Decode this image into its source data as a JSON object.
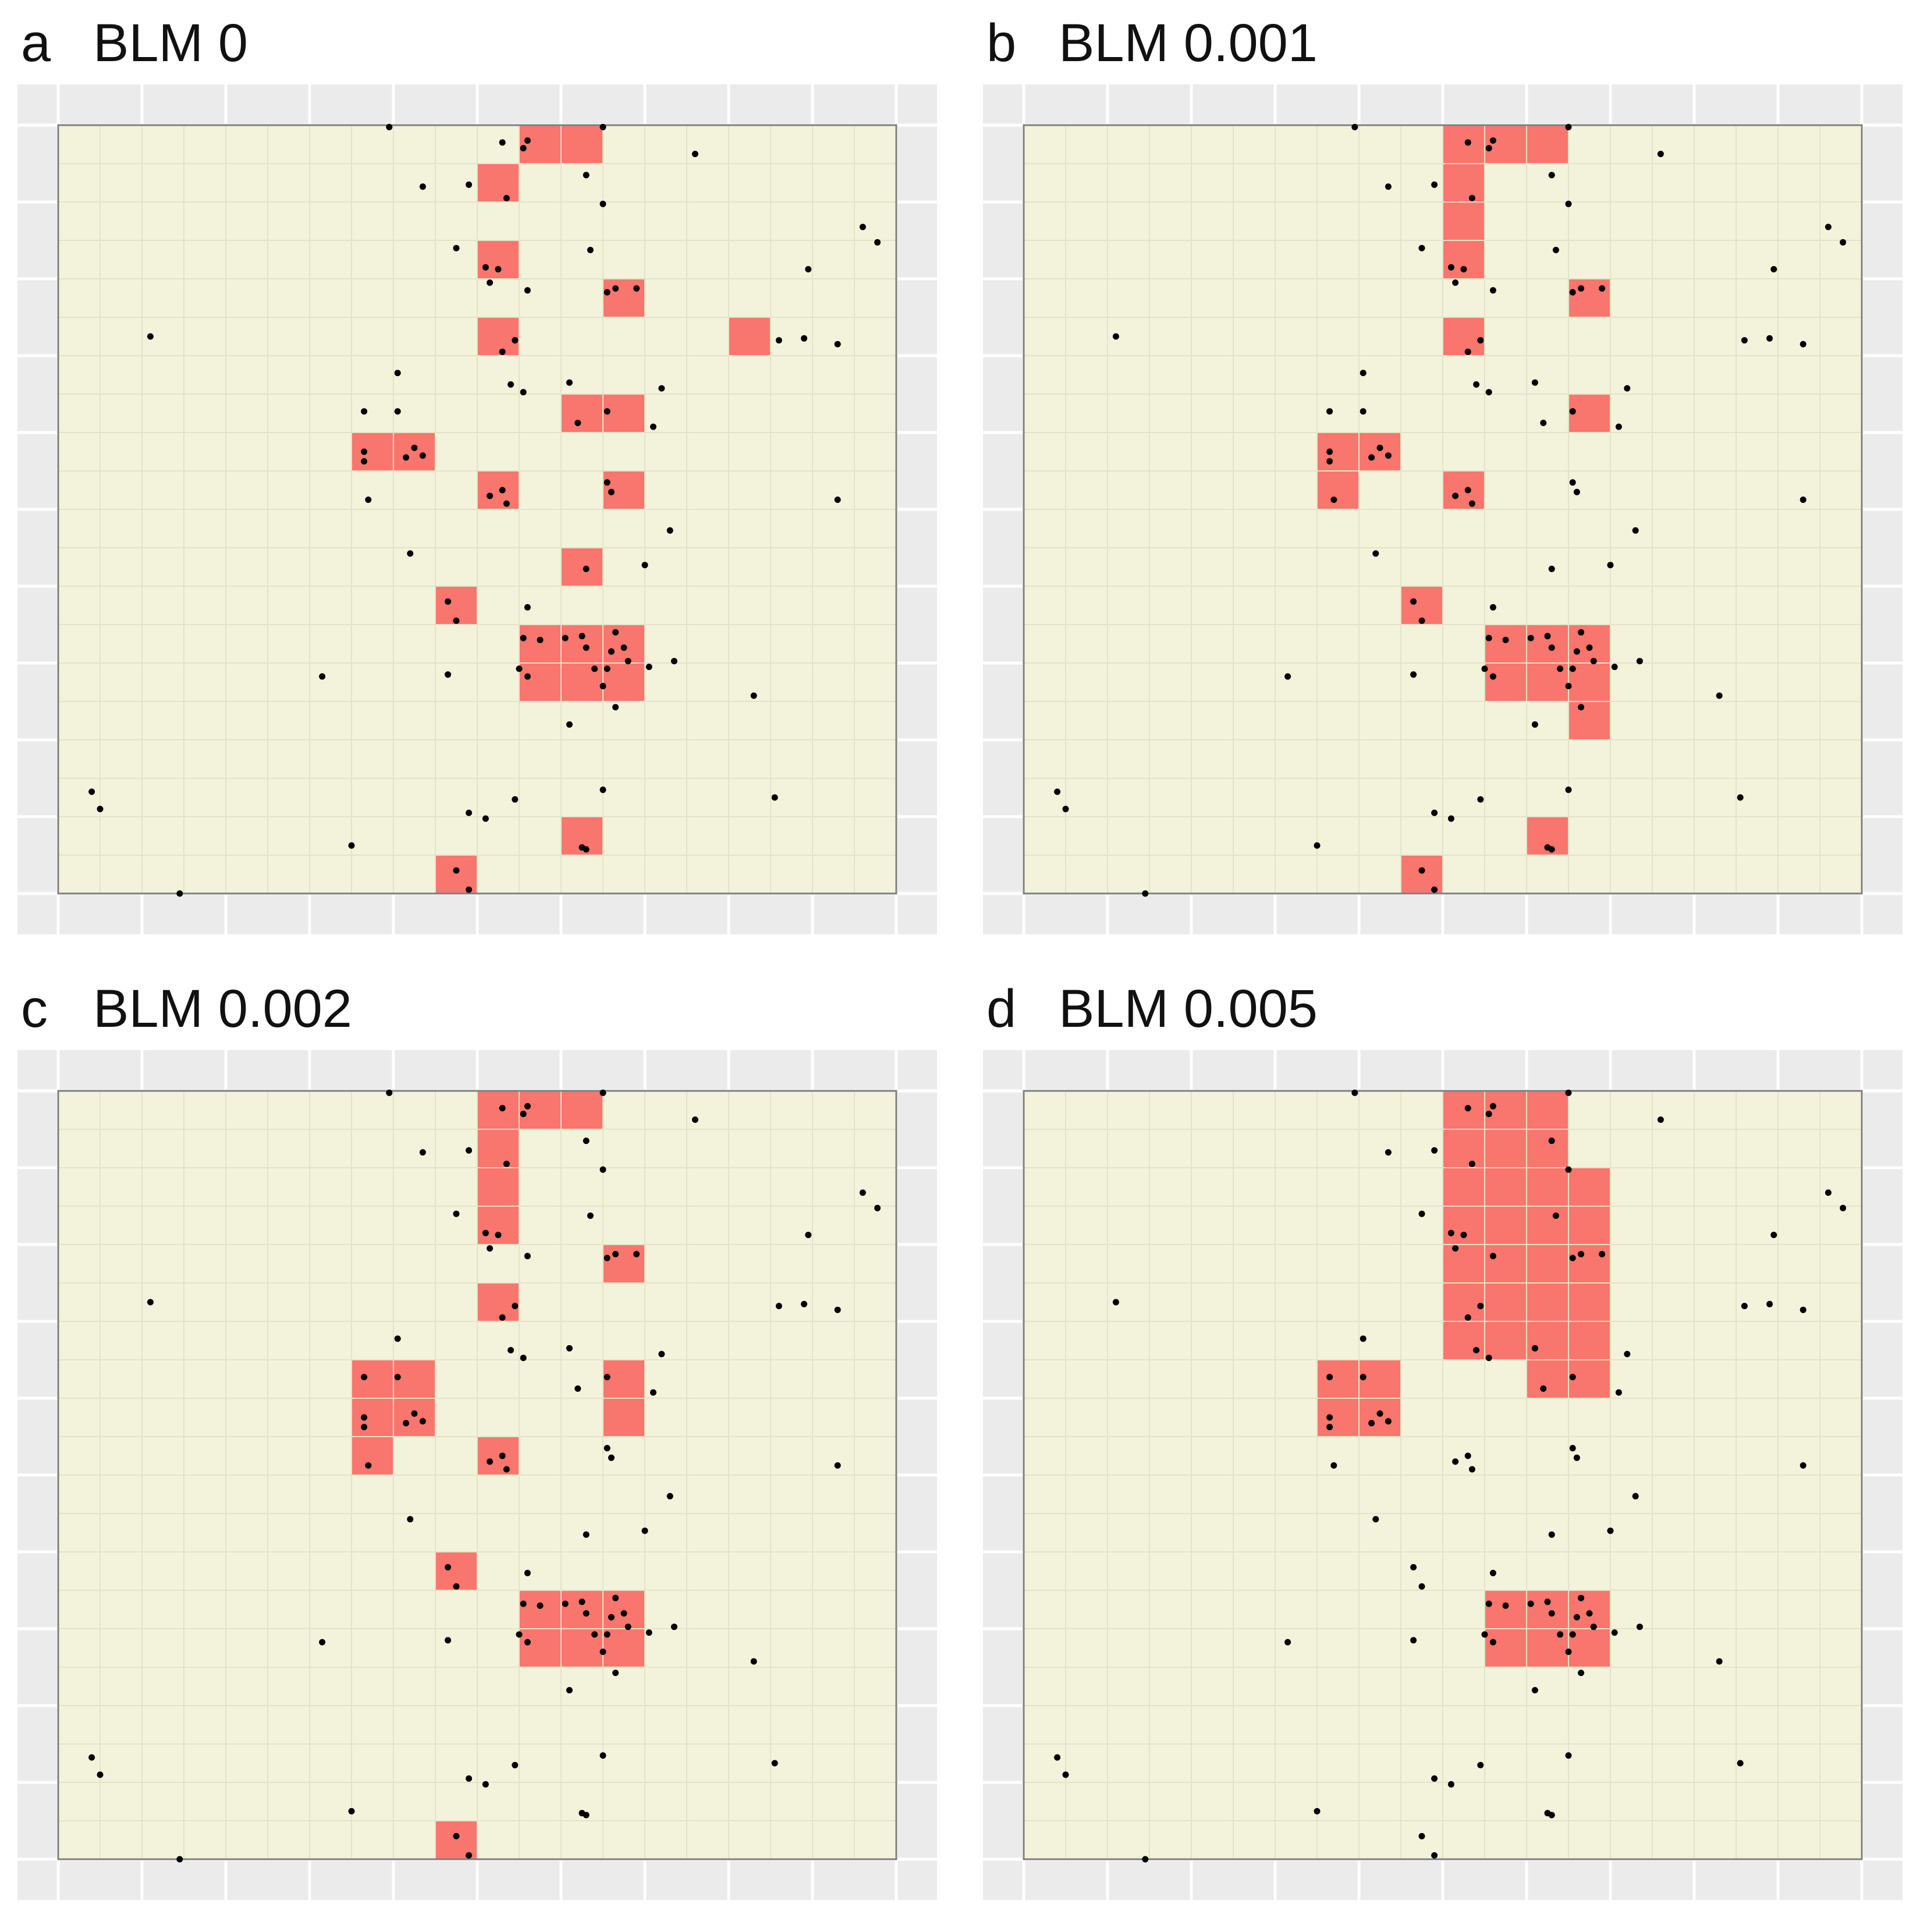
{
  "colors": {
    "panel_bg": "#ebebeb",
    "plot_bg": "#f3f3dc",
    "grid": "#e3e3c7",
    "selected": "#f8766d",
    "point": "#000000",
    "border": "#7f7f7f"
  },
  "chart_data": [
    {
      "type": "heatmap",
      "label": "a",
      "title": "BLM 0",
      "grid": {
        "cols": 20,
        "rows": 20,
        "gridlines": true
      },
      "xlabel": "",
      "ylabel": "",
      "selected_cells": [
        [
          11,
          0
        ],
        [
          12,
          0
        ],
        [
          10,
          1
        ],
        [
          10,
          3
        ],
        [
          13,
          4
        ],
        [
          10,
          5
        ],
        [
          16,
          5
        ],
        [
          12,
          7
        ],
        [
          13,
          7
        ],
        [
          7,
          8
        ],
        [
          8,
          8
        ],
        [
          10,
          9
        ],
        [
          13,
          9
        ],
        [
          12,
          11
        ],
        [
          9,
          12
        ],
        [
          11,
          13
        ],
        [
          12,
          13
        ],
        [
          13,
          13
        ],
        [
          11,
          14
        ],
        [
          12,
          14
        ],
        [
          13,
          14
        ],
        [
          12,
          18
        ],
        [
          9,
          19
        ]
      ]
    },
    {
      "type": "heatmap",
      "label": "b",
      "title": "BLM 0.001",
      "grid": {
        "cols": 20,
        "rows": 20,
        "gridlines": true
      },
      "xlabel": "",
      "ylabel": "",
      "selected_cells": [
        [
          10,
          0
        ],
        [
          11,
          0
        ],
        [
          12,
          0
        ],
        [
          10,
          1
        ],
        [
          10,
          2
        ],
        [
          10,
          3
        ],
        [
          13,
          4
        ],
        [
          10,
          5
        ],
        [
          13,
          7
        ],
        [
          7,
          8
        ],
        [
          8,
          8
        ],
        [
          7,
          9
        ],
        [
          10,
          9
        ],
        [
          9,
          12
        ],
        [
          11,
          13
        ],
        [
          12,
          13
        ],
        [
          13,
          13
        ],
        [
          11,
          14
        ],
        [
          12,
          14
        ],
        [
          13,
          14
        ],
        [
          13,
          15
        ],
        [
          12,
          18
        ],
        [
          9,
          19
        ]
      ]
    },
    {
      "type": "heatmap",
      "label": "c",
      "title": "BLM 0.002",
      "grid": {
        "cols": 20,
        "rows": 20,
        "gridlines": true
      },
      "xlabel": "",
      "ylabel": "",
      "selected_cells": [
        [
          10,
          0
        ],
        [
          11,
          0
        ],
        [
          12,
          0
        ],
        [
          10,
          1
        ],
        [
          10,
          2
        ],
        [
          10,
          3
        ],
        [
          13,
          4
        ],
        [
          10,
          5
        ],
        [
          7,
          7
        ],
        [
          8,
          7
        ],
        [
          13,
          7
        ],
        [
          7,
          8
        ],
        [
          8,
          8
        ],
        [
          13,
          8
        ],
        [
          7,
          9
        ],
        [
          10,
          9
        ],
        [
          9,
          12
        ],
        [
          11,
          13
        ],
        [
          12,
          13
        ],
        [
          13,
          13
        ],
        [
          11,
          14
        ],
        [
          12,
          14
        ],
        [
          13,
          14
        ],
        [
          9,
          19
        ]
      ]
    },
    {
      "type": "heatmap",
      "label": "d",
      "title": "BLM 0.005",
      "grid": {
        "cols": 20,
        "rows": 20,
        "gridlines": true
      },
      "xlabel": "",
      "ylabel": "",
      "selected_cells": [
        [
          10,
          0
        ],
        [
          11,
          0
        ],
        [
          12,
          0
        ],
        [
          10,
          1
        ],
        [
          11,
          1
        ],
        [
          12,
          1
        ],
        [
          10,
          2
        ],
        [
          11,
          2
        ],
        [
          12,
          2
        ],
        [
          13,
          2
        ],
        [
          10,
          3
        ],
        [
          11,
          3
        ],
        [
          12,
          3
        ],
        [
          13,
          3
        ],
        [
          10,
          4
        ],
        [
          11,
          4
        ],
        [
          12,
          4
        ],
        [
          13,
          4
        ],
        [
          10,
          5
        ],
        [
          11,
          5
        ],
        [
          12,
          5
        ],
        [
          13,
          5
        ],
        [
          10,
          6
        ],
        [
          11,
          6
        ],
        [
          12,
          6
        ],
        [
          13,
          6
        ],
        [
          12,
          7
        ],
        [
          13,
          7
        ],
        [
          7,
          7
        ],
        [
          8,
          7
        ],
        [
          7,
          8
        ],
        [
          8,
          8
        ],
        [
          11,
          13
        ],
        [
          12,
          13
        ],
        [
          13,
          13
        ],
        [
          11,
          14
        ],
        [
          12,
          14
        ],
        [
          13,
          14
        ]
      ]
    }
  ],
  "points": [
    [
      7.9,
      0.05
    ],
    [
      10.6,
      0.45
    ],
    [
      11.2,
      0.4
    ],
    [
      11.1,
      0.6
    ],
    [
      15.2,
      0.75
    ],
    [
      13,
      0.05
    ],
    [
      8.7,
      1.6
    ],
    [
      9.8,
      1.55
    ],
    [
      10.7,
      1.9
    ],
    [
      12.6,
      1.3
    ],
    [
      13,
      2.05
    ],
    [
      19.2,
      2.65
    ],
    [
      19.55,
      3.05
    ],
    [
      9.5,
      3.2
    ],
    [
      10.2,
      3.7
    ],
    [
      10.5,
      3.75
    ],
    [
      12.7,
      3.25
    ],
    [
      17.9,
      3.75
    ],
    [
      10.3,
      4.1
    ],
    [
      11.2,
      4.3
    ],
    [
      13.3,
      4.25
    ],
    [
      13.1,
      4.35
    ],
    [
      13.8,
      4.25
    ],
    [
      2.2,
      5.5
    ],
    [
      10.9,
      5.6
    ],
    [
      10.6,
      5.9
    ],
    [
      17.8,
      5.55
    ],
    [
      17.2,
      5.6
    ],
    [
      18.6,
      5.7
    ],
    [
      8.1,
      6.45
    ],
    [
      10.8,
      6.75
    ],
    [
      11.1,
      6.95
    ],
    [
      12.2,
      6.7
    ],
    [
      14.4,
      6.85
    ],
    [
      7.3,
      7.45
    ],
    [
      8.1,
      7.45
    ],
    [
      12.4,
      7.75
    ],
    [
      13.1,
      7.45
    ],
    [
      14.2,
      7.85
    ],
    [
      7.3,
      8.5
    ],
    [
      7.3,
      8.75
    ],
    [
      8.3,
      8.65
    ],
    [
      8.5,
      8.4
    ],
    [
      8.7,
      8.6
    ],
    [
      7.4,
      9.75
    ],
    [
      10.3,
      9.65
    ],
    [
      10.6,
      9.5
    ],
    [
      10.7,
      9.85
    ],
    [
      13.1,
      9.3
    ],
    [
      13.2,
      9.55
    ],
    [
      18.6,
      9.75
    ],
    [
      14.6,
      10.55
    ],
    [
      8.4,
      11.15
    ],
    [
      12.6,
      11.55
    ],
    [
      14,
      11.45
    ],
    [
      9.3,
      12.4
    ],
    [
      9.5,
      12.9
    ],
    [
      11.2,
      12.55
    ],
    [
      11.1,
      13.35
    ],
    [
      11.5,
      13.4
    ],
    [
      12.1,
      13.35
    ],
    [
      12.5,
      13.3
    ],
    [
      13.3,
      13.2
    ],
    [
      13.5,
      13.6
    ],
    [
      12.6,
      13.6
    ],
    [
      13.2,
      13.7
    ],
    [
      13.6,
      13.95
    ],
    [
      12.8,
      14.15
    ],
    [
      13.1,
      14.15
    ],
    [
      11.0,
      14.15
    ],
    [
      11.2,
      14.35
    ],
    [
      14.7,
      13.95
    ],
    [
      14.1,
      14.1
    ],
    [
      6.3,
      14.35
    ],
    [
      9.3,
      14.3
    ],
    [
      16.6,
      14.85
    ],
    [
      13,
      14.6
    ],
    [
      13.3,
      15.15
    ],
    [
      12.2,
      15.6
    ],
    [
      0.8,
      17.35
    ],
    [
      1,
      17.8
    ],
    [
      17.1,
      17.5
    ],
    [
      10.9,
      17.55
    ],
    [
      13,
      17.3
    ],
    [
      10.2,
      18.05
    ],
    [
      9.8,
      17.9
    ],
    [
      7,
      18.75
    ],
    [
      12.5,
      18.8
    ],
    [
      12.6,
      18.85
    ],
    [
      9.5,
      19.4
    ],
    [
      9.8,
      19.9
    ],
    [
      2.9,
      20
    ]
  ]
}
